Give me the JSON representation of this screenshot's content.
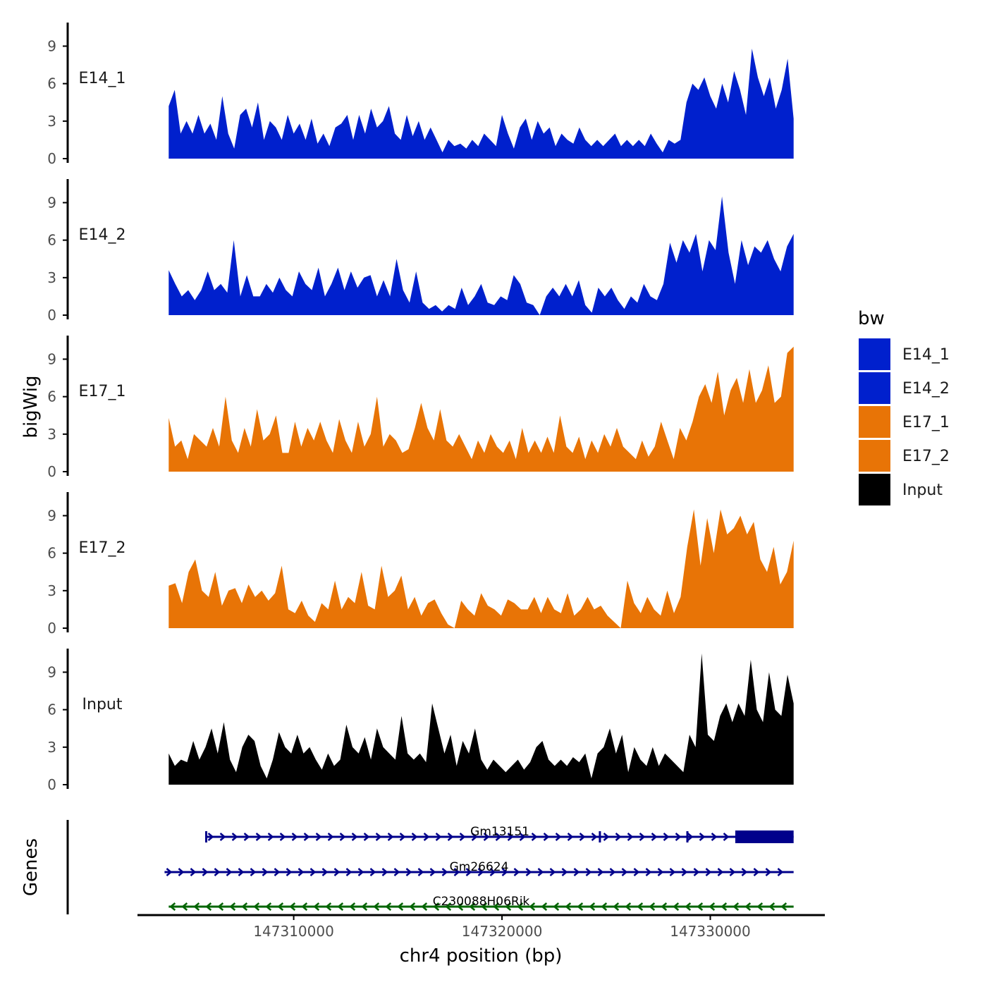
{
  "chart_data": {
    "type": "area",
    "title": "",
    "xlabel": "chr4 position (bp)",
    "ylabel": "bigWig",
    "xlim": [
      147302500,
      147335500
    ],
    "ylim": [
      0,
      11
    ],
    "y_ticks": [
      0,
      3,
      6,
      9
    ],
    "x_ticks": [
      147310000,
      147320000,
      147330000
    ],
    "x_tick_labels": [
      "147310000",
      "147320000",
      "147330000"
    ],
    "legend": {
      "title": "bw",
      "position": "right",
      "items": [
        {
          "label": "E14_1",
          "color": "#0020CD"
        },
        {
          "label": "E14_2",
          "color": "#0020CD"
        },
        {
          "label": "E17_1",
          "color": "#E87406"
        },
        {
          "label": "E17_2",
          "color": "#E87406"
        },
        {
          "label": "Input",
          "color": "#000000"
        }
      ]
    },
    "series": [
      {
        "name": "E14_1",
        "color": "#0020CD",
        "x_start": 147304000,
        "x_end": 147334000,
        "values": [
          4.2,
          5.5,
          2,
          3,
          2,
          3.5,
          2,
          2.8,
          1.5,
          5,
          2,
          0.8,
          3.5,
          4,
          2.5,
          4.5,
          1.5,
          3,
          2.5,
          1.5,
          3.5,
          2,
          2.8,
          1.5,
          3.2,
          1.2,
          2,
          1,
          2.5,
          2.8,
          3.5,
          1.5,
          3.5,
          2,
          4,
          2.5,
          3,
          4.2,
          2,
          1.5,
          3.5,
          1.8,
          3,
          1.5,
          2.5,
          1.5,
          0.5,
          1.5,
          1,
          1.2,
          0.8,
          1.5,
          1,
          2,
          1.5,
          1,
          3.5,
          2,
          0.8,
          2.5,
          3.2,
          1.5,
          3,
          2,
          2.5,
          1,
          2,
          1.5,
          1.2,
          2.5,
          1.5,
          1,
          1.5,
          1,
          1.5,
          2,
          1,
          1.5,
          1,
          1.5,
          1,
          2,
          1.2,
          0.5,
          1.5,
          1.2,
          1.5,
          4.5,
          6,
          5.5,
          6.5,
          5,
          4,
          6,
          4.5,
          7,
          5.5,
          3.5,
          8.8,
          6.5,
          5,
          6.5,
          4,
          5.5,
          8,
          3.2
        ]
      },
      {
        "name": "E14_2",
        "color": "#0020CD",
        "x_start": 147304000,
        "x_end": 147334000,
        "values": [
          3.6,
          2.5,
          1.5,
          2,
          1.2,
          2,
          3.5,
          2,
          2.5,
          1.8,
          6,
          1.5,
          3.2,
          1.5,
          1.5,
          2.5,
          1.8,
          3,
          2,
          1.5,
          3.5,
          2.5,
          2,
          3.8,
          1.5,
          2.5,
          3.8,
          2,
          3.5,
          2.2,
          3,
          3.2,
          1.5,
          2.8,
          1.5,
          4.5,
          2,
          1,
          3.5,
          1,
          0.5,
          0.8,
          0.3,
          0.8,
          0.5,
          2.2,
          0.8,
          1.5,
          2.5,
          1,
          0.8,
          1.5,
          1.2,
          3.2,
          2.5,
          1,
          0.8,
          0,
          1.5,
          2.2,
          1.5,
          2.5,
          1.5,
          2.8,
          0.8,
          0.2,
          2.2,
          1.5,
          2.2,
          1.2,
          0.5,
          1.5,
          1,
          2.5,
          1.5,
          1.2,
          2.5,
          5.8,
          4.2,
          6,
          5,
          6.5,
          3.5,
          6,
          5.2,
          9.5,
          5,
          2.5,
          6,
          4,
          5.5,
          5,
          6,
          4.5,
          3.5,
          5.5,
          6.5
        ]
      },
      {
        "name": "E17_1",
        "color": "#E87406",
        "x_start": 147304000,
        "x_end": 147334000,
        "values": [
          4.3,
          2,
          2.5,
          1,
          3,
          2.5,
          2,
          3.5,
          2,
          6,
          2.5,
          1.5,
          3.5,
          2,
          5,
          2.5,
          3,
          4.5,
          1.5,
          1.5,
          4,
          2,
          3.5,
          2.5,
          4,
          2.5,
          1.5,
          4.2,
          2.5,
          1.5,
          4,
          2,
          3,
          6,
          2,
          3,
          2.5,
          1.5,
          1.8,
          3.5,
          5.5,
          3.5,
          2.5,
          5,
          2.5,
          2,
          3,
          2,
          1,
          2.5,
          1.5,
          3,
          2,
          1.5,
          2.5,
          1,
          3.5,
          1.5,
          2.5,
          1.5,
          2.8,
          1.5,
          4.5,
          2,
          1.5,
          2.8,
          1,
          2.5,
          1.5,
          3,
          2,
          3.5,
          2,
          1.5,
          1,
          2.5,
          1.2,
          2,
          4,
          2.5,
          1,
          3.5,
          2.5,
          4,
          6,
          7,
          5.5,
          8,
          4.5,
          6.5,
          7.5,
          5.5,
          8.2,
          5.5,
          6.5,
          8.5,
          5.5,
          6,
          9.5,
          10
        ]
      },
      {
        "name": "E17_2",
        "color": "#E87406",
        "x_start": 147304000,
        "x_end": 147334000,
        "values": [
          3.4,
          3.6,
          2,
          4.5,
          5.5,
          3,
          2.5,
          4.5,
          1.8,
          3,
          3.2,
          2,
          3.5,
          2.5,
          3,
          2.2,
          2.8,
          5,
          1.5,
          1.2,
          2.2,
          1,
          0.5,
          2,
          1.5,
          3.8,
          1.5,
          2.5,
          2,
          4.5,
          1.8,
          1.5,
          5,
          2.5,
          3,
          4.2,
          1.5,
          2.5,
          1,
          2,
          2.3,
          1.2,
          0.3,
          0,
          2.2,
          1.5,
          1,
          2.8,
          1.8,
          1.5,
          1,
          2.3,
          2,
          1.5,
          1.5,
          2.5,
          1.2,
          2.5,
          1.5,
          1.2,
          2.8,
          1,
          1.5,
          2.5,
          1.5,
          1.8,
          1,
          0.5,
          0,
          3.8,
          2,
          1.2,
          2.5,
          1.5,
          1,
          3,
          1.2,
          2.5,
          6.5,
          9.5,
          5,
          8.8,
          6,
          9.5,
          7.5,
          8,
          9,
          7.5,
          8.5,
          5.5,
          4.5,
          6.5,
          3.5,
          4.5,
          7
        ]
      },
      {
        "name": "Input",
        "color": "#000000",
        "x_start": 147304000,
        "x_end": 147334000,
        "values": [
          2.5,
          1.5,
          2,
          1.8,
          3.5,
          2,
          3,
          4.5,
          2.5,
          5,
          2,
          1,
          3,
          4,
          3.5,
          1.5,
          0.5,
          2,
          4.2,
          3,
          2.5,
          4,
          2.5,
          3,
          2,
          1.2,
          2.5,
          1.5,
          2,
          4.8,
          3,
          2.5,
          3.8,
          2,
          4.5,
          3,
          2.5,
          2,
          5.5,
          2.5,
          2,
          2.5,
          1.8,
          6.5,
          4.5,
          2.5,
          4,
          1.5,
          3.5,
          2.5,
          4.5,
          2,
          1.2,
          2,
          1.5,
          1,
          1.5,
          2,
          1.2,
          1.8,
          3,
          3.5,
          2,
          1.5,
          2,
          1.5,
          2.2,
          1.8,
          2.5,
          0.5,
          2.5,
          3,
          4.5,
          2.5,
          4,
          1,
          3,
          2,
          1.5,
          3,
          1.5,
          2.5,
          2,
          1.5,
          1,
          4,
          3,
          10.5,
          4,
          3.5,
          5.5,
          6.5,
          5,
          6.5,
          5.5,
          10,
          6,
          5,
          9,
          6,
          5.5,
          8.8,
          6.5
        ]
      }
    ],
    "genes_track": {
      "label": "Genes",
      "genes": [
        {
          "name": "Gm13151",
          "strand": "+",
          "start": 147305800,
          "end": 147334000,
          "color": "#00008B",
          "thick_start": 147331200,
          "thick_end": 147334000,
          "exon_marks": [
            147305800,
            147324700,
            147328900
          ]
        },
        {
          "name": "Gm26624",
          "strand": "+",
          "start": 147303800,
          "end": 147334000,
          "color": "#00008B"
        },
        {
          "name": "C230088H06Rik",
          "strand": "-",
          "start": 147304000,
          "end": 147334000,
          "color": "#006400"
        }
      ]
    }
  }
}
